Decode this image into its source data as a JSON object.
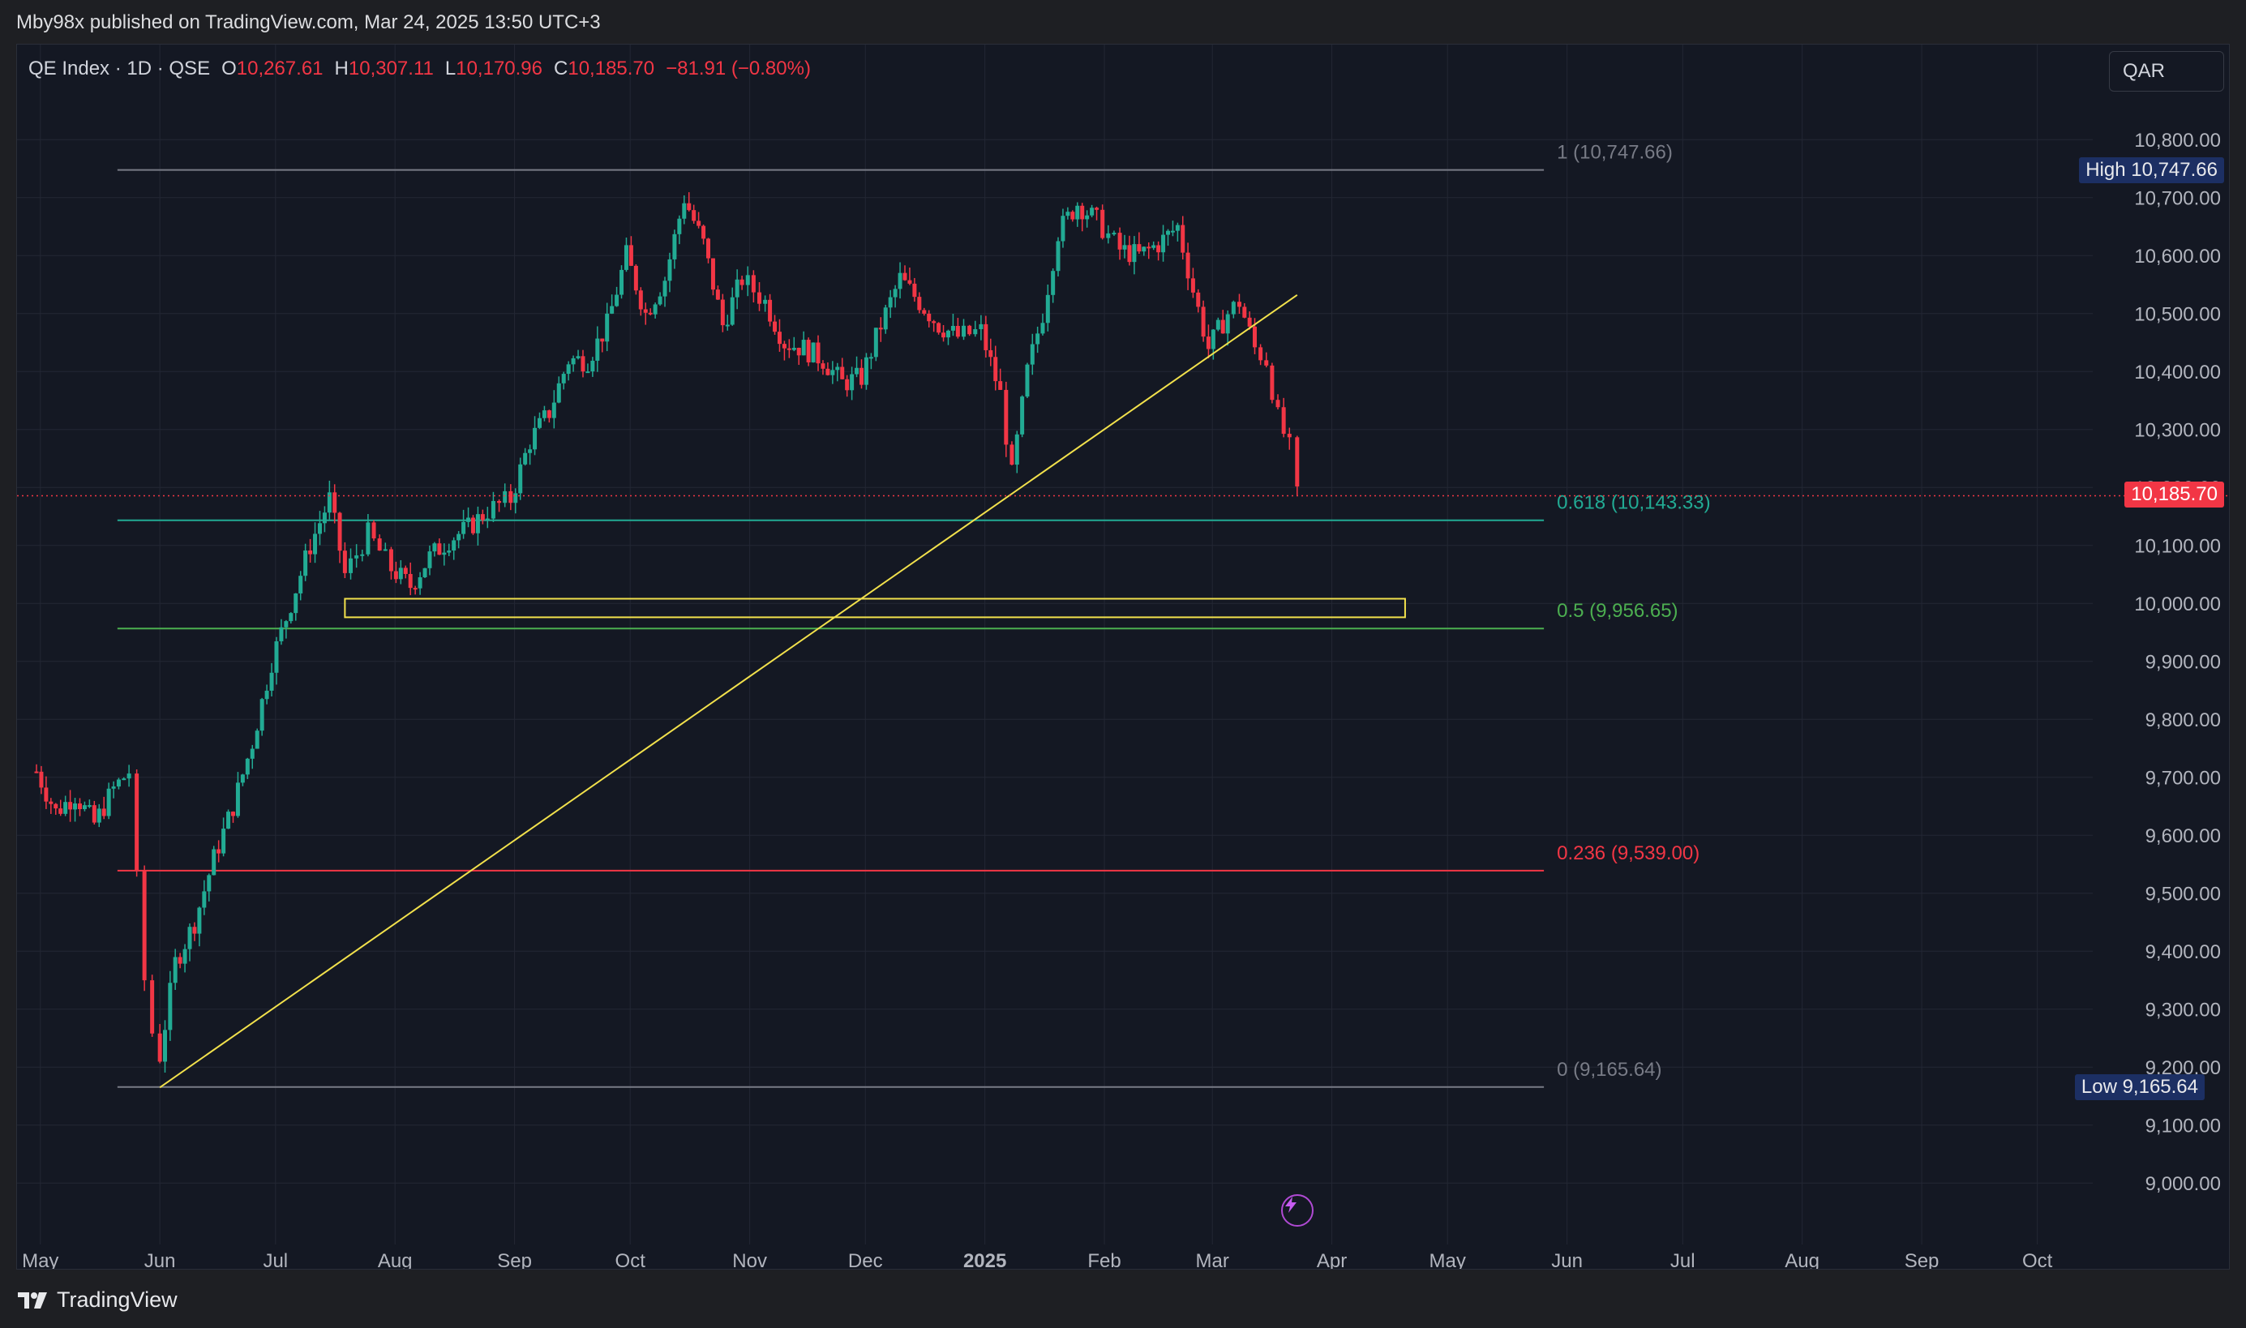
{
  "header": {
    "caption": "Mby98x published on TradingView.com, Mar 24, 2025 13:50 UTC+3"
  },
  "legend": {
    "symbol": "QE Index · 1D · QSE",
    "open_label": "O",
    "open_value": "10,267.61",
    "high_label": "H",
    "high_value": "10,307.11",
    "low_label": "L",
    "low_value": "10,170.96",
    "close_label": "C",
    "close_value": "10,185.70",
    "change": "−81.91 (−0.80%)"
  },
  "currency_button": "QAR",
  "footer": {
    "brand": "TradingView"
  },
  "chart_data": {
    "type": "candlestick",
    "ylim": [
      8950,
      10880
    ],
    "y_ticks": [
      "10,800.00",
      "10,700.00",
      "10,600.00",
      "10,500.00",
      "10,400.00",
      "10,300.00",
      "10,200.00",
      "10,100.00",
      "10,000.00",
      "9,900.00",
      "9,800.00",
      "9,700.00",
      "9,600.00",
      "9,500.00",
      "9,400.00",
      "9,300.00",
      "9,200.00",
      "9,100.00",
      "9,000.00"
    ],
    "y_tick_values": [
      10800,
      10700,
      10600,
      10500,
      10400,
      10300,
      10200,
      10100,
      10000,
      9900,
      9800,
      9700,
      9600,
      9500,
      9400,
      9300,
      9200,
      9100,
      9000
    ],
    "x_ticks": [
      "May",
      "Jun",
      "Jul",
      "Aug",
      "Sep",
      "Oct",
      "Nov",
      "Dec",
      "2025",
      "Feb",
      "Mar",
      "Apr",
      "May",
      "Jun",
      "Jul",
      "Aug",
      "Sep",
      "Oct"
    ],
    "x_tick_dates": [
      "2024-05-01",
      "2024-06-01",
      "2024-07-01",
      "2024-08-01",
      "2024-09-01",
      "2024-10-01",
      "2024-11-01",
      "2024-12-01",
      "2025-01-01",
      "2025-02-01",
      "2025-03-01",
      "2025-04-01",
      "2025-05-01",
      "2025-06-01",
      "2025-07-01",
      "2025-08-01",
      "2025-09-01",
      "2025-10-01"
    ],
    "x_range": [
      "2024-04-30",
      "2025-10-12"
    ],
    "last_price": {
      "label": "10,185.70",
      "value": 10185.7
    },
    "high_marker": {
      "label": "High",
      "value_label": "10,747.66",
      "value": 10747.66
    },
    "low_marker": {
      "label": "Low",
      "value_label": "9,165.64",
      "value": 9165.64
    },
    "fibonacci": [
      {
        "label": "1 (10,747.66)",
        "value": 10747.66,
        "color": "#787b86"
      },
      {
        "label": "0.618 (10,143.33)",
        "value": 10143.33,
        "color": "#22ab94"
      },
      {
        "label": "0.5 (9,956.65)",
        "value": 9956.65,
        "color": "#4caf50"
      },
      {
        "label": "0.236 (9,539.00)",
        "value": 9539.0,
        "color": "#f23645"
      },
      {
        "label": "0 (9,165.64)",
        "value": 9165.64,
        "color": "#787b86"
      }
    ],
    "fib_range": {
      "start": "2024-05-21",
      "end": "2025-05-26"
    },
    "trendline": {
      "start": {
        "date": "2024-06-01",
        "value": 9165
      },
      "end": {
        "date": "2025-03-23",
        "value": 10532
      },
      "color": "#f2e14c"
    },
    "zone_rect": {
      "start": "2024-07-19",
      "end": "2025-04-20",
      "top": 10008,
      "bottom": 9976,
      "color": "#f2e14c"
    },
    "series": [
      {
        "date": "2024-04-30",
        "close": 9710
      },
      {
        "date": "2024-05-05",
        "close": 9640
      },
      {
        "date": "2024-05-10",
        "close": 9670
      },
      {
        "date": "2024-05-15",
        "close": 9620
      },
      {
        "date": "2024-05-20",
        "close": 9680
      },
      {
        "date": "2024-05-24",
        "close": 9710
      },
      {
        "date": "2024-05-26",
        "close": 9520
      },
      {
        "date": "2024-05-28",
        "close": 9350
      },
      {
        "date": "2024-05-30",
        "close": 9260
      },
      {
        "date": "2024-06-01",
        "close": 9220
      },
      {
        "date": "2024-06-05",
        "close": 9380
      },
      {
        "date": "2024-06-10",
        "close": 9450
      },
      {
        "date": "2024-06-15",
        "close": 9560
      },
      {
        "date": "2024-06-20",
        "close": 9650
      },
      {
        "date": "2024-06-25",
        "close": 9760
      },
      {
        "date": "2024-06-30",
        "close": 9900
      },
      {
        "date": "2024-07-05",
        "close": 10000
      },
      {
        "date": "2024-07-10",
        "close": 10100
      },
      {
        "date": "2024-07-15",
        "close": 10180
      },
      {
        "date": "2024-07-19",
        "close": 10050
      },
      {
        "date": "2024-07-25",
        "close": 10120
      },
      {
        "date": "2024-07-31",
        "close": 10060
      },
      {
        "date": "2024-08-05",
        "close": 10030
      },
      {
        "date": "2024-08-10",
        "close": 10080
      },
      {
        "date": "2024-08-15",
        "close": 10110
      },
      {
        "date": "2024-08-20",
        "close": 10130
      },
      {
        "date": "2024-08-25",
        "close": 10160
      },
      {
        "date": "2024-08-31",
        "close": 10180
      },
      {
        "date": "2024-09-05",
        "close": 10280
      },
      {
        "date": "2024-09-10",
        "close": 10330
      },
      {
        "date": "2024-09-15",
        "close": 10420
      },
      {
        "date": "2024-09-20",
        "close": 10420
      },
      {
        "date": "2024-09-25",
        "close": 10480
      },
      {
        "date": "2024-09-30",
        "close": 10600
      },
      {
        "date": "2024-10-05",
        "close": 10500
      },
      {
        "date": "2024-10-10",
        "close": 10560
      },
      {
        "date": "2024-10-15",
        "close": 10700
      },
      {
        "date": "2024-10-20",
        "close": 10620
      },
      {
        "date": "2024-10-25",
        "close": 10480
      },
      {
        "date": "2024-10-30",
        "close": 10560
      },
      {
        "date": "2024-11-05",
        "close": 10520
      },
      {
        "date": "2024-11-10",
        "close": 10450
      },
      {
        "date": "2024-11-15",
        "close": 10440
      },
      {
        "date": "2024-11-20",
        "close": 10420
      },
      {
        "date": "2024-11-25",
        "close": 10380
      },
      {
        "date": "2024-11-30",
        "close": 10390
      },
      {
        "date": "2024-12-05",
        "close": 10480
      },
      {
        "date": "2024-12-10",
        "close": 10560
      },
      {
        "date": "2024-12-15",
        "close": 10520
      },
      {
        "date": "2024-12-20",
        "close": 10480
      },
      {
        "date": "2024-12-25",
        "close": 10460
      },
      {
        "date": "2024-12-31",
        "close": 10470
      },
      {
        "date": "2025-01-05",
        "close": 10360
      },
      {
        "date": "2025-01-08",
        "close": 10220
      },
      {
        "date": "2025-01-12",
        "close": 10400
      },
      {
        "date": "2025-01-16",
        "close": 10500
      },
      {
        "date": "2025-01-20",
        "close": 10640
      },
      {
        "date": "2025-01-25",
        "close": 10690
      },
      {
        "date": "2025-01-30",
        "close": 10660
      },
      {
        "date": "2025-02-05",
        "close": 10610
      },
      {
        "date": "2025-02-10",
        "close": 10600
      },
      {
        "date": "2025-02-15",
        "close": 10620
      },
      {
        "date": "2025-02-20",
        "close": 10650
      },
      {
        "date": "2025-02-24",
        "close": 10540
      },
      {
        "date": "2025-02-28",
        "close": 10440
      },
      {
        "date": "2025-03-05",
        "close": 10500
      },
      {
        "date": "2025-03-08",
        "close": 10520
      },
      {
        "date": "2025-03-12",
        "close": 10440
      },
      {
        "date": "2025-03-15",
        "close": 10420
      },
      {
        "date": "2025-03-18",
        "close": 10320
      },
      {
        "date": "2025-03-21",
        "close": 10267
      },
      {
        "date": "2025-03-23",
        "close": 10185
      }
    ]
  }
}
